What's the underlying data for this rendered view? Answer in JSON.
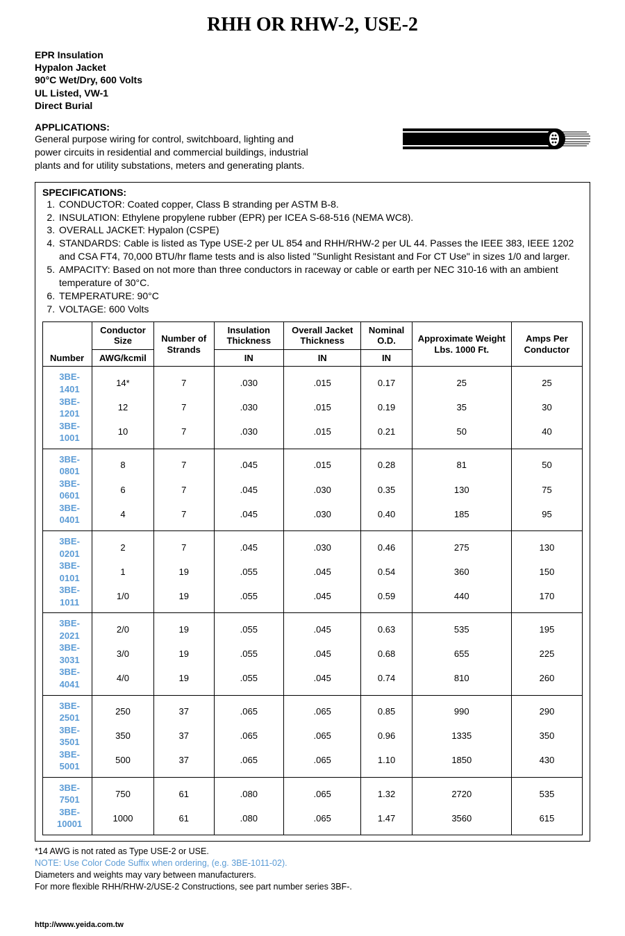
{
  "title": "RHH OR RHW-2, USE-2",
  "header_lines": [
    "EPR Insulation",
    "Hypalon Jacket",
    "90°C Wet/Dry, 600 Volts",
    "UL Listed, VW-1",
    "Direct Burial"
  ],
  "applications": {
    "heading": "APPLICATIONS:",
    "body": "General purpose wiring for control, switchboard, lighting and power circuits in residential and commercial buildings, industrial plants and for utility substations, meters and generating plants."
  },
  "specifications": {
    "heading": "SPECIFICATIONS:",
    "items": [
      "CONDUCTOR: Coated copper, Class B stranding per ASTM B-8.",
      "INSULATION: Ethylene propylene rubber (EPR) per ICEA S-68-516 (NEMA WC8).",
      "OVERALL JACKET: Hypalon (CSPE)",
      "STANDARDS: Cable is listed as Type USE-2 per UL 854 and RHH/RHW-2 per UL 44. Passes the IEEE 383, IEEE 1202 and CSA FT4, 70,000 BTU/hr flame tests and is also listed \"Sunlight Resistant and For CT Use\" in sizes 1/0 and larger.",
      "AMPACITY: Based on not more than three conductors in raceway or cable or earth per NEC 310-16 with an ambient temperature of 30°C.",
      "TEMPERATURE: 90°C",
      "VOLTAGE: 600 Volts"
    ]
  },
  "table": {
    "headers": {
      "number": "Number",
      "conductor_size": "Conductor Size",
      "conductor_unit": "AWG/kcmil",
      "strands": "Number of Strands",
      "insulation": "Insulation Thickness",
      "jacket": "Overall Jacket Thickness",
      "od": "Nominal O.D.",
      "unit_in": "IN",
      "weight": "Approximate Weight Lbs. 1000 Ft.",
      "amps": "Amps Per Conductor"
    },
    "groups": [
      [
        [
          "3BE-1401",
          "14*",
          "7",
          ".030",
          ".015",
          "0.17",
          "25",
          "25"
        ],
        [
          "3BE-1201",
          "12",
          "7",
          ".030",
          ".015",
          "0.19",
          "35",
          "30"
        ],
        [
          "3BE-1001",
          "10",
          "7",
          ".030",
          ".015",
          "0.21",
          "50",
          "40"
        ]
      ],
      [
        [
          "3BE-0801",
          "8",
          "7",
          ".045",
          ".015",
          "0.28",
          "81",
          "50"
        ],
        [
          "3BE-0601",
          "6",
          "7",
          ".045",
          ".030",
          "0.35",
          "130",
          "75"
        ],
        [
          "3BE-0401",
          "4",
          "7",
          ".045",
          ".030",
          "0.40",
          "185",
          "95"
        ]
      ],
      [
        [
          "3BE-0201",
          "2",
          "7",
          ".045",
          ".030",
          "0.46",
          "275",
          "130"
        ],
        [
          "3BE-0101",
          "1",
          "19",
          ".055",
          ".045",
          "0.54",
          "360",
          "150"
        ],
        [
          "3BE-1011",
          "1/0",
          "19",
          ".055",
          ".045",
          "0.59",
          "440",
          "170"
        ]
      ],
      [
        [
          "3BE-2021",
          "2/0",
          "19",
          ".055",
          ".045",
          "0.63",
          "535",
          "195"
        ],
        [
          "3BE-3031",
          "3/0",
          "19",
          ".055",
          ".045",
          "0.68",
          "655",
          "225"
        ],
        [
          "3BE-4041",
          "4/0",
          "19",
          ".055",
          ".045",
          "0.74",
          "810",
          "260"
        ]
      ],
      [
        [
          "3BE-2501",
          "250",
          "37",
          ".065",
          ".065",
          "0.85",
          "990",
          "290"
        ],
        [
          "3BE-3501",
          "350",
          "37",
          ".065",
          ".065",
          "0.96",
          "1335",
          "350"
        ],
        [
          "3BE-5001",
          "500",
          "37",
          ".065",
          ".065",
          "1.10",
          "1850",
          "430"
        ]
      ],
      [
        [
          "3BE-7501",
          "750",
          "61",
          ".080",
          ".065",
          "1.32",
          "2720",
          "535"
        ],
        [
          "3BE-10001",
          "1000",
          "61",
          ".080",
          ".065",
          "1.47",
          "3560",
          "615"
        ]
      ]
    ]
  },
  "footnotes": {
    "line1": "*14 AWG is not rated as Type USE-2 or USE.",
    "line2": "NOTE: Use Color Code Suffix when ordering, (e.g. 3BE-1011-02).",
    "line3": "Diameters and weights may vary between manufacturers.",
    "line4": "For more flexible RHH/RHW-2/USE-2 Constructions, see part number series 3BF-."
  },
  "source_url": "http://www.yeida.com.tw",
  "colors": {
    "link_blue": "#5b9bd5",
    "text": "#000000",
    "background": "#ffffff"
  }
}
